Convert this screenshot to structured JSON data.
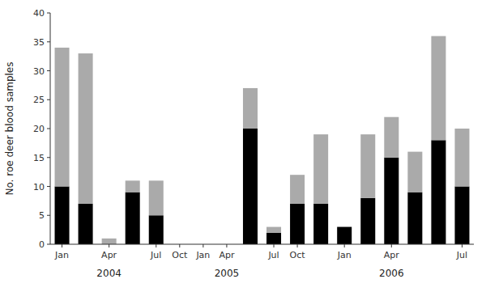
{
  "chart_data": {
    "type": "bar",
    "stacked": true,
    "grid": false,
    "ylabel": "No. roe deer blood samples",
    "categories": [
      "Jan",
      null,
      "Apr",
      null,
      "Jul",
      "Oct",
      "Jan",
      "Apr",
      null,
      "Jul",
      "Oct",
      null,
      "Jan",
      null,
      "Apr",
      null,
      null,
      "Jul"
    ],
    "series": [
      {
        "color": "#000000",
        "values": [
          10,
          7,
          0,
          9,
          5,
          0,
          0,
          0,
          20,
          2,
          7,
          7,
          3,
          8,
          15,
          9,
          18,
          10
        ]
      },
      {
        "color": "#aaaaaa",
        "values": [
          24,
          26,
          1,
          2,
          6,
          0,
          0,
          0,
          7,
          1,
          5,
          12,
          0,
          11,
          7,
          7,
          18,
          10
        ]
      }
    ],
    "ylim": [
      0,
      40
    ],
    "yticks": [
      0,
      5,
      10,
      15,
      20,
      25,
      30,
      35,
      40
    ],
    "annotations": [
      {
        "text": "2004",
        "x": 2
      },
      {
        "text": "2005",
        "x": 7
      },
      {
        "text": "2006",
        "x": 14
      }
    ]
  }
}
